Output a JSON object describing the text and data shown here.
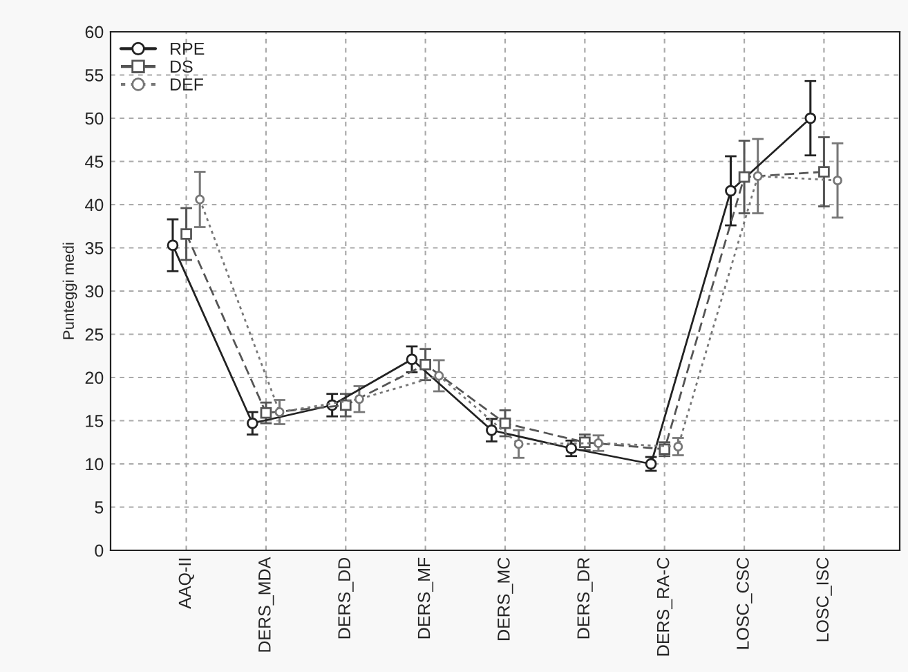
{
  "chart_data": {
    "type": "line",
    "ylabel": "Punteggi medi",
    "categories": [
      "AAQ-II",
      "DERS_MDA",
      "DERS_DD",
      "DERS_MF",
      "DERS_MC",
      "DERS_DR",
      "DERS_RA-C",
      "LOSC_CSC",
      "LOSC_ISC"
    ],
    "series": [
      {
        "name": "RPE",
        "color": "#222222",
        "marker": "circle",
        "line_style": "solid",
        "values": [
          35.3,
          14.7,
          16.8,
          22.1,
          13.9,
          11.8,
          10.0,
          41.6,
          50.0
        ],
        "errors": [
          3.0,
          1.3,
          1.3,
          1.5,
          1.3,
          0.9,
          0.8,
          4.0,
          4.3
        ]
      },
      {
        "name": "DS",
        "color": "#555555",
        "marker": "square",
        "line_style": "dashed",
        "values": [
          36.6,
          15.9,
          16.8,
          21.5,
          14.7,
          12.5,
          11.7,
          43.2,
          43.8
        ],
        "errors": [
          3.0,
          1.2,
          1.3,
          1.8,
          1.5,
          0.9,
          0.8,
          4.2,
          4.0
        ]
      },
      {
        "name": "DEF",
        "color": "#777777",
        "marker": "circle",
        "line_style": "dotted",
        "values": [
          40.6,
          16.0,
          17.5,
          20.2,
          12.3,
          12.4,
          12.0,
          43.3,
          42.8
        ],
        "errors": [
          3.2,
          1.4,
          1.5,
          1.8,
          1.6,
          0.9,
          1.0,
          4.3,
          4.3
        ]
      }
    ],
    "ylim": [
      0,
      60
    ],
    "yticks": [
      0,
      5,
      10,
      15,
      20,
      25,
      30,
      35,
      40,
      45,
      50,
      55,
      60
    ],
    "grid": true,
    "legend": "top left"
  }
}
